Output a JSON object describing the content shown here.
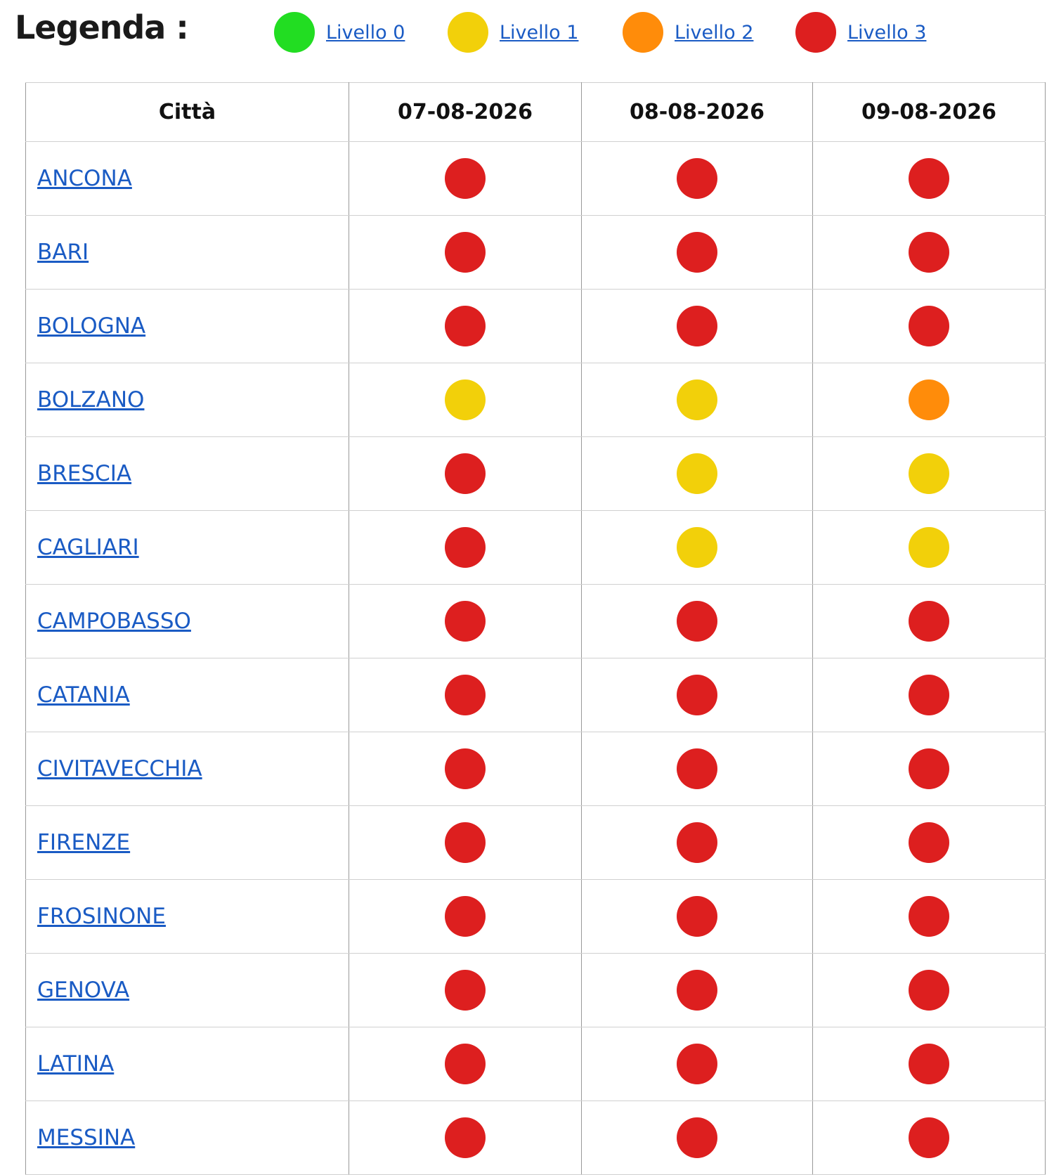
{
  "legend": {
    "title": "Legenda :",
    "items": [
      {
        "label": "Livello 0",
        "color": "#22dd22"
      },
      {
        "label": "Livello 1",
        "color": "#f2d00a"
      },
      {
        "label": "Livello 2",
        "color": "#ff8c0a"
      },
      {
        "label": "Livello 3",
        "color": "#dd1f1f"
      }
    ]
  },
  "table": {
    "header": [
      "Città",
      "07-08-2026",
      "08-08-2026",
      "09-08-2026"
    ],
    "rows": [
      {
        "city": "ANCONA",
        "levels": [
          3,
          3,
          3
        ]
      },
      {
        "city": "BARI",
        "levels": [
          3,
          3,
          3
        ]
      },
      {
        "city": "BOLOGNA",
        "levels": [
          3,
          3,
          3
        ]
      },
      {
        "city": "BOLZANO",
        "levels": [
          1,
          1,
          2
        ]
      },
      {
        "city": "BRESCIA",
        "levels": [
          3,
          1,
          1
        ]
      },
      {
        "city": "CAGLIARI",
        "levels": [
          3,
          1,
          1
        ]
      },
      {
        "city": "CAMPOBASSO",
        "levels": [
          3,
          3,
          3
        ]
      },
      {
        "city": "CATANIA",
        "levels": [
          3,
          3,
          3
        ]
      },
      {
        "city": "CIVITAVECCHIA",
        "levels": [
          3,
          3,
          3
        ]
      },
      {
        "city": "FIRENZE",
        "levels": [
          3,
          3,
          3
        ]
      },
      {
        "city": "FROSINONE",
        "levels": [
          3,
          3,
          3
        ]
      },
      {
        "city": "GENOVA",
        "levels": [
          3,
          3,
          3
        ]
      },
      {
        "city": "LATINA",
        "levels": [
          3,
          3,
          3
        ]
      },
      {
        "city": "MESSINA",
        "levels": [
          3,
          3,
          3
        ]
      }
    ]
  }
}
